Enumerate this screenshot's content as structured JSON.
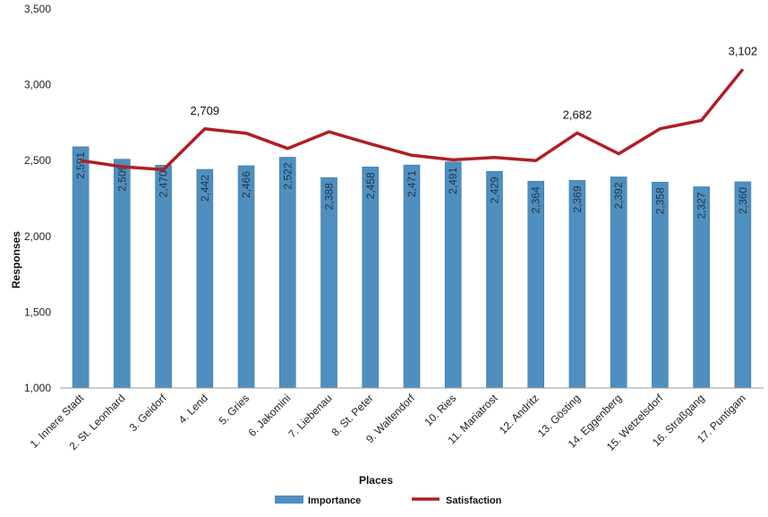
{
  "chart_data": {
    "type": "bar",
    "title": "",
    "xlabel": "Places",
    "ylabel": "Responses",
    "ylim": [
      1000,
      3500
    ],
    "yticks": [
      "1,000",
      "1,500",
      "2,000",
      "2,500",
      "3,000",
      "3,500"
    ],
    "categories": [
      "1. Innere Stadt",
      "2. St. Leonhard",
      "3. Geidorf",
      "4. Lend",
      "5. Gries",
      "6. Jakomini",
      "7. Liebenau",
      "8. St. Peter",
      "9. Waltendorf",
      "10. Ries",
      "11. Mariatrost",
      "12. Andritz",
      "13. Gösting",
      "14. Eggenberg",
      "15. Wetzelsdorf",
      "16. Straßgang",
      "17. Puntigam"
    ],
    "series": [
      {
        "name": "Importance",
        "type": "bar",
        "color": "#4f8fbf",
        "values": [
          2591,
          2509,
          2470,
          2442,
          2466,
          2522,
          2388,
          2458,
          2471,
          2491,
          2429,
          2364,
          2369,
          2392,
          2358,
          2327,
          2360
        ],
        "labels": [
          "2,591",
          "2,509",
          "2,470",
          "2,442",
          "2,466",
          "2,522",
          "2,388",
          "2,458",
          "2,471",
          "2,491",
          "2,429",
          "2,364",
          "2,369",
          "2,392",
          "2,358",
          "2,327",
          "2,360"
        ]
      },
      {
        "name": "Satisfaction",
        "type": "line",
        "color": "#b01e24",
        "values": [
          2500,
          2460,
          2440,
          2709,
          2680,
          2580,
          2690,
          2610,
          2535,
          2505,
          2520,
          2500,
          2682,
          2545,
          2710,
          2765,
          3102
        ],
        "annotated": [
          {
            "index": 3,
            "label": "2,709"
          },
          {
            "index": 12,
            "label": "2,682"
          },
          {
            "index": 16,
            "label": "3,102"
          }
        ]
      }
    ],
    "grid": false,
    "legend_position": "bottom"
  }
}
